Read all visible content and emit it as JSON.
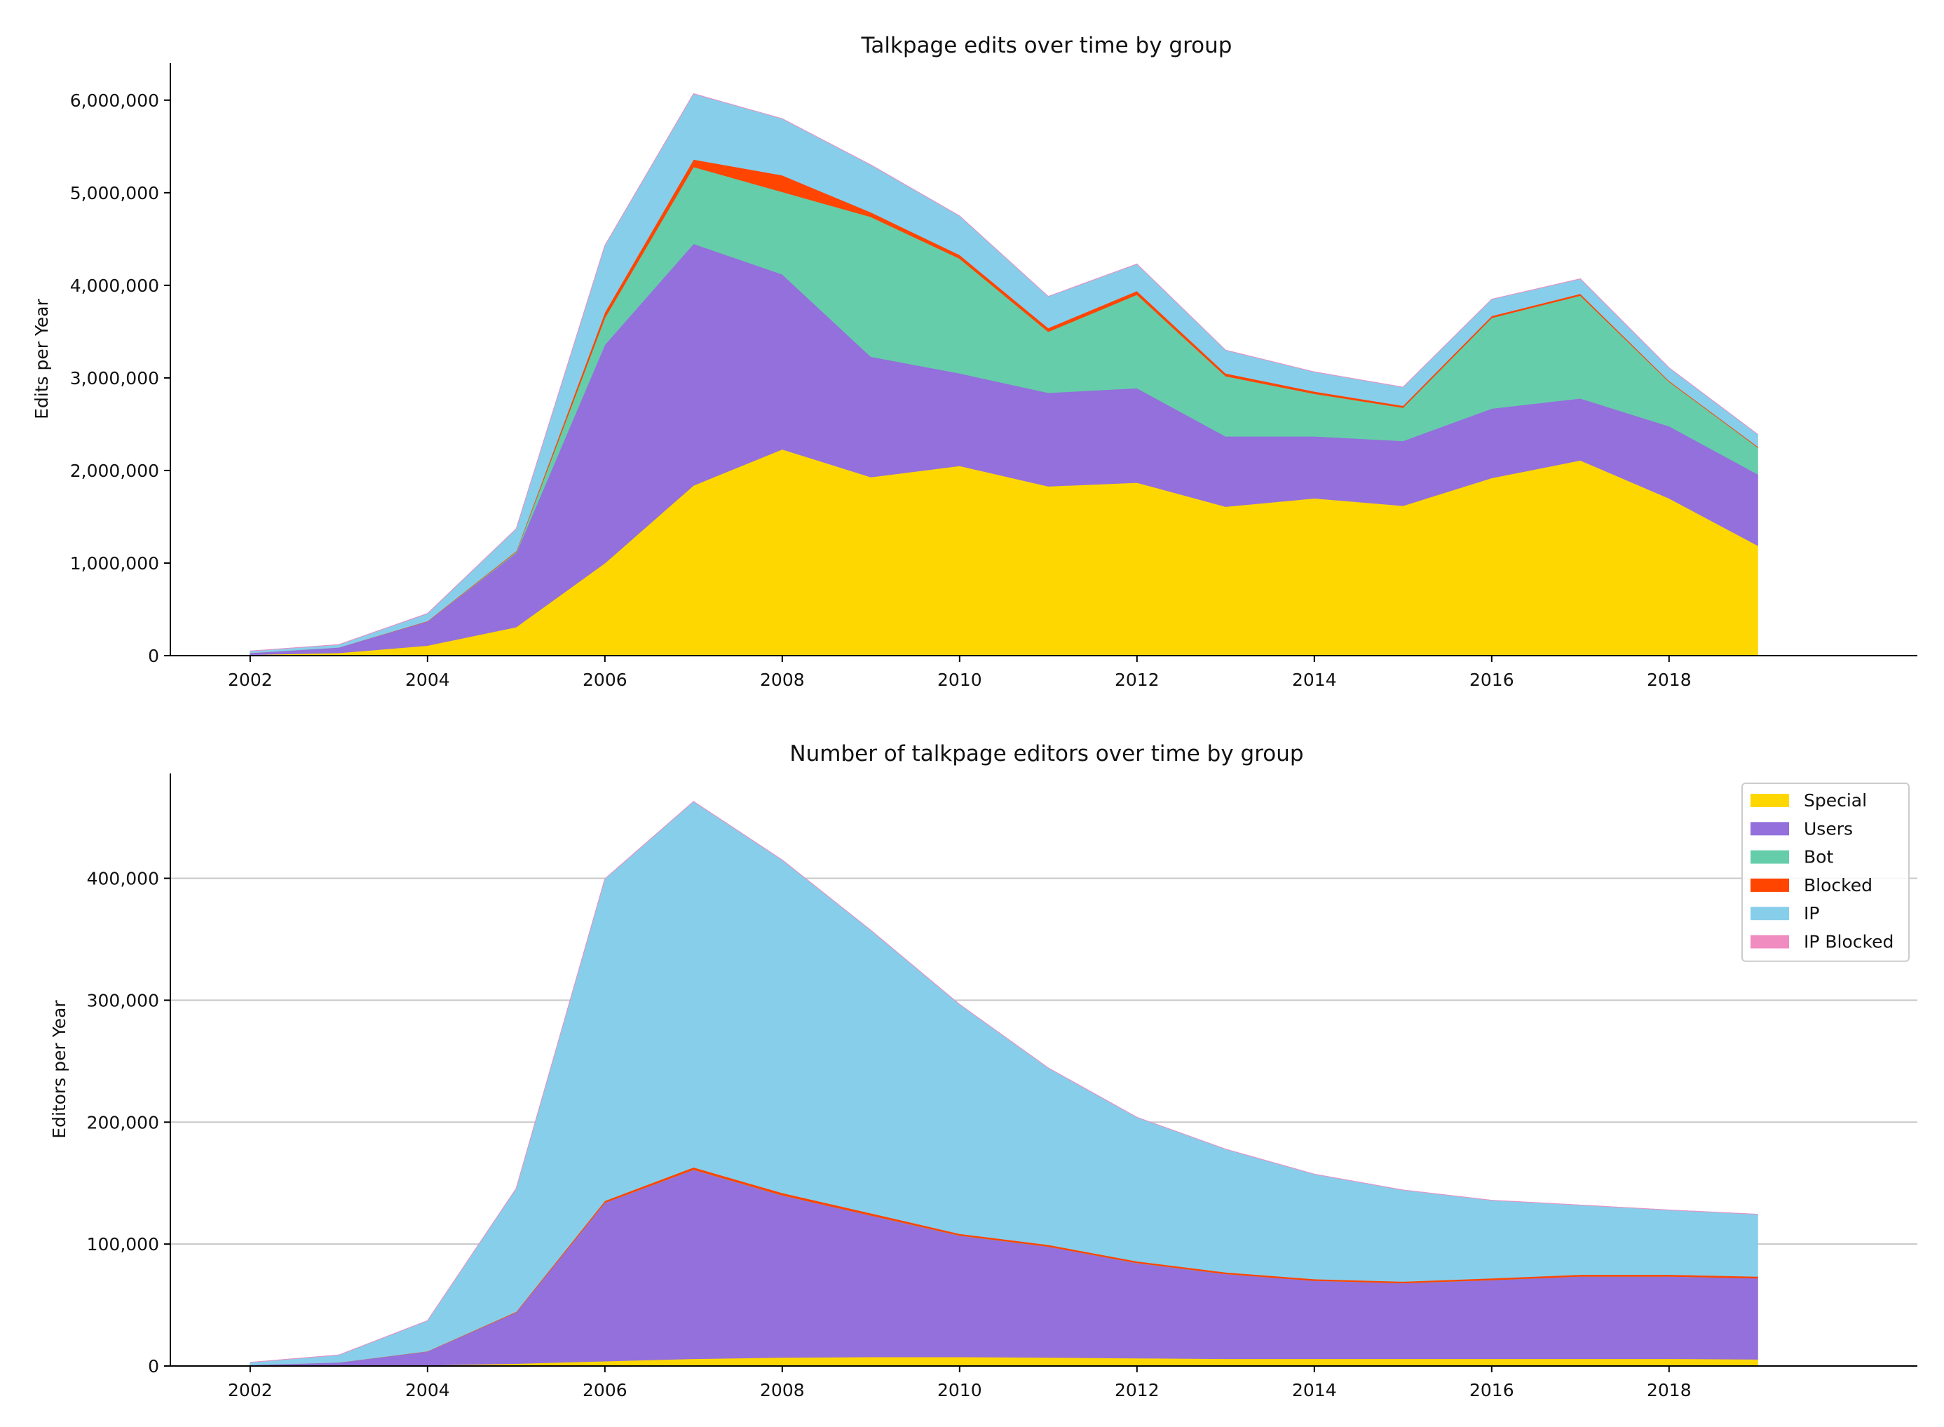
{
  "chart_data": [
    {
      "type": "area",
      "stacked": true,
      "title": "Talkpage edits over time by group",
      "xlabel": "",
      "ylabel": "Edits per Year",
      "xlim": [
        2001.1,
        2020.8
      ],
      "ylim": [
        0,
        6400000
      ],
      "x_ticks": [
        2002,
        2004,
        2006,
        2008,
        2010,
        2012,
        2014,
        2016,
        2018
      ],
      "y_ticks": [
        0,
        1000000,
        2000000,
        3000000,
        4000000,
        5000000,
        6000000
      ],
      "y_tick_labels": [
        "0",
        "1,000,000",
        "2,000,000",
        "3,000,000",
        "4,000,000",
        "5,000,000",
        "6,000,000"
      ],
      "grid": false,
      "legend": false,
      "x": [
        2002,
        2003,
        2004,
        2005,
        2006,
        2007,
        2008,
        2009,
        2010,
        2011,
        2012,
        2013,
        2014,
        2015,
        2016,
        2017,
        2018,
        2019
      ],
      "series": [
        {
          "name": "Special",
          "color": "#FFD700",
          "values": [
            10000,
            30000,
            110000,
            310000,
            1000000,
            1840000,
            2230000,
            1930000,
            2050000,
            1830000,
            1870000,
            1610000,
            1700000,
            1620000,
            1920000,
            2110000,
            1700000,
            1190000
          ]
        },
        {
          "name": "Users",
          "color": "#9370DB",
          "values": [
            20000,
            60000,
            260000,
            800000,
            2360000,
            2610000,
            1890000,
            1300000,
            1000000,
            1010000,
            1020000,
            760000,
            670000,
            700000,
            750000,
            670000,
            780000,
            770000
          ]
        },
        {
          "name": "Bot",
          "color": "#66CDAA",
          "values": [
            0,
            0,
            0,
            10000,
            290000,
            830000,
            890000,
            1510000,
            1240000,
            660000,
            1010000,
            650000,
            460000,
            360000,
            980000,
            1110000,
            480000,
            290000
          ]
        },
        {
          "name": "Blocked",
          "color": "#FF4500",
          "values": [
            0,
            0,
            5000,
            10000,
            60000,
            80000,
            180000,
            50000,
            40000,
            40000,
            40000,
            30000,
            25000,
            20000,
            20000,
            20000,
            10000,
            10000
          ]
        },
        {
          "name": "IP",
          "color": "#87CEEB",
          "values": [
            20000,
            30000,
            80000,
            240000,
            720000,
            710000,
            610000,
            510000,
            420000,
            340000,
            290000,
            250000,
            210000,
            200000,
            180000,
            160000,
            140000,
            130000
          ]
        },
        {
          "name": "IP Blocked",
          "color": "#F08CC0",
          "values": [
            0,
            0,
            0,
            0,
            0,
            0,
            0,
            0,
            0,
            0,
            0,
            0,
            0,
            0,
            0,
            0,
            0,
            0
          ]
        }
      ]
    },
    {
      "type": "area",
      "stacked": true,
      "title": "Number of talkpage editors over time by group",
      "xlabel": "",
      "ylabel": "Editors per Year",
      "xlim": [
        2001.1,
        2020.8
      ],
      "ylim": [
        0,
        486000
      ],
      "x_ticks": [
        2002,
        2004,
        2006,
        2008,
        2010,
        2012,
        2014,
        2016,
        2018
      ],
      "y_ticks": [
        0,
        100000,
        200000,
        300000,
        400000
      ],
      "y_tick_labels": [
        "0",
        "100,000",
        "200,000",
        "300,000",
        "400,000"
      ],
      "grid": true,
      "legend": true,
      "legend_position": "top-right",
      "x": [
        2002,
        2003,
        2004,
        2005,
        2006,
        2007,
        2008,
        2009,
        2010,
        2011,
        2012,
        2013,
        2014,
        2015,
        2016,
        2017,
        2018,
        2019
      ],
      "series": [
        {
          "name": "Special",
          "color": "#FFD700",
          "values": [
            0,
            200,
            700,
            2000,
            4000,
            6000,
            7000,
            7500,
            7500,
            7000,
            6500,
            6000,
            6000,
            6000,
            6000,
            6000,
            6000,
            5500
          ]
        },
        {
          "name": "Users",
          "color": "#9370DB",
          "values": [
            1000,
            2800,
            11300,
            42000,
            130000,
            155000,
            133000,
            116000,
            99500,
            91000,
            78000,
            69500,
            64000,
            62000,
            64500,
            67500,
            67500,
            66500
          ]
        },
        {
          "name": "Bot",
          "color": "#66CDAA",
          "values": [
            0,
            0,
            0,
            0,
            50,
            80,
            80,
            80,
            80,
            80,
            80,
            80,
            80,
            80,
            80,
            80,
            80,
            80
          ]
        },
        {
          "name": "Blocked",
          "color": "#FF4500",
          "values": [
            0,
            50,
            200,
            600,
            1500,
            2000,
            2000,
            1800,
            1500,
            1400,
            1400,
            1300,
            1300,
            1300,
            1400,
            1400,
            1400,
            1400
          ]
        },
        {
          "name": "IP",
          "color": "#87CEEB",
          "values": [
            2000,
            6000,
            25000,
            101000,
            264000,
            300000,
            273000,
            232000,
            188000,
            145000,
            118000,
            101000,
            86000,
            75000,
            64000,
            57000,
            53000,
            51000
          ]
        },
        {
          "name": "IP Blocked",
          "color": "#F08CC0",
          "values": [
            0,
            0,
            0,
            0,
            0,
            0,
            0,
            0,
            0,
            0,
            0,
            0,
            0,
            0,
            0,
            0,
            0,
            0
          ]
        }
      ]
    }
  ]
}
